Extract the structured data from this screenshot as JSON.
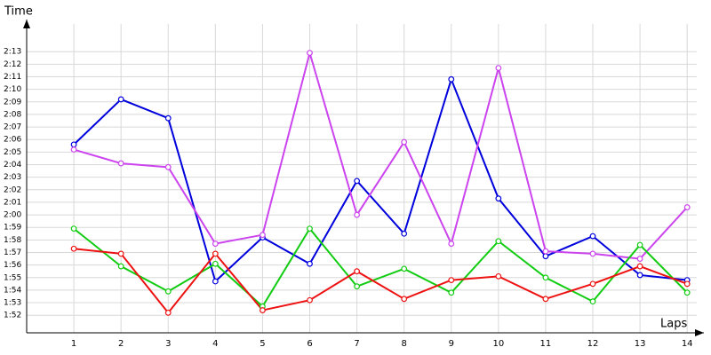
{
  "chart_data": {
    "type": "line",
    "y_label": "Time",
    "x_label": "Laps",
    "x": [
      1,
      2,
      3,
      4,
      5,
      6,
      7,
      8,
      9,
      10,
      11,
      12,
      13,
      14
    ],
    "xlim": [
      0,
      14.2
    ],
    "xticks": [
      1,
      2,
      3,
      4,
      5,
      6,
      7,
      8,
      9,
      10,
      11,
      12,
      13,
      14
    ],
    "ylim": [
      110.6,
      134.5
    ],
    "yticks": [
      {
        "value": 112,
        "label": "1:52"
      },
      {
        "value": 113,
        "label": "1:53"
      },
      {
        "value": 114,
        "label": "1:54"
      },
      {
        "value": 115,
        "label": "1:55"
      },
      {
        "value": 116,
        "label": "1:56"
      },
      {
        "value": 117,
        "label": "1:57"
      },
      {
        "value": 118,
        "label": "1:58"
      },
      {
        "value": 119,
        "label": "1:59"
      },
      {
        "value": 120,
        "label": "2:00"
      },
      {
        "value": 121,
        "label": "2:01"
      },
      {
        "value": 122,
        "label": "2:02"
      },
      {
        "value": 123,
        "label": "2:03"
      },
      {
        "value": 124,
        "label": "2:04"
      },
      {
        "value": 125,
        "label": "2:05"
      },
      {
        "value": 126,
        "label": "2:06"
      },
      {
        "value": 127,
        "label": "2:07"
      },
      {
        "value": 128,
        "label": "2:08"
      },
      {
        "value": 129,
        "label": "2:09"
      },
      {
        "value": 130,
        "label": "2:10"
      },
      {
        "value": 131,
        "label": "2:11"
      },
      {
        "value": 132,
        "label": "2:12"
      },
      {
        "value": 133,
        "label": "2:13"
      }
    ],
    "grid": true,
    "series": [
      {
        "color": "#0000dd",
        "values": [
          125.6,
          129.2,
          127.7,
          114.7,
          118.2,
          116.1,
          122.7,
          118.5,
          130.8,
          121.3,
          116.7,
          118.3,
          115.2,
          114.8
        ]
      },
      {
        "color": "#cc44ee",
        "values": [
          125.2,
          124.1,
          123.8,
          117.7,
          118.4,
          132.9,
          120.0,
          125.8,
          117.7,
          131.7,
          117.1,
          116.9,
          116.5,
          120.6
        ]
      },
      {
        "color": "#11cc11",
        "values": [
          118.9,
          115.9,
          113.9,
          116.1,
          112.7,
          118.9,
          114.3,
          115.7,
          113.8,
          117.9,
          115.0,
          113.1,
          117.6,
          113.8
        ]
      },
      {
        "color": "#ee1111",
        "values": [
          117.3,
          116.9,
          112.2,
          116.9,
          112.4,
          113.2,
          115.5,
          113.3,
          114.8,
          115.1,
          113.3,
          114.5,
          115.9,
          114.5
        ]
      }
    ]
  }
}
